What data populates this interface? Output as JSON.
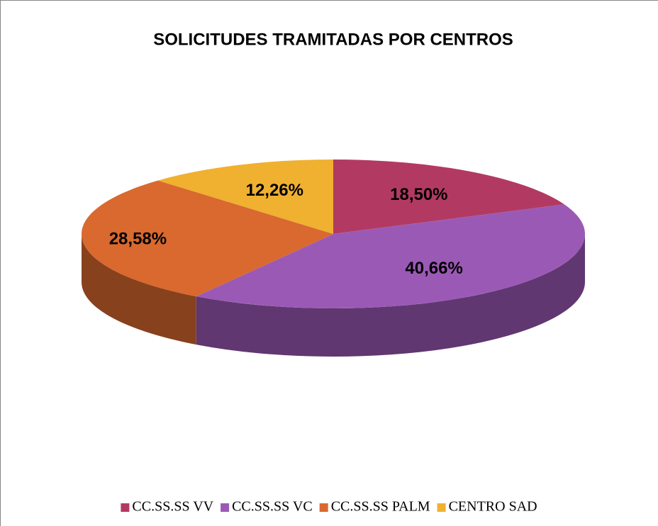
{
  "chart_data": {
    "type": "pie3d",
    "title": "SOLICITUDES TRAMITADAS POR CENTROS",
    "categories": [
      "CC.SS.SS VV",
      "CC.SS.SS VC",
      "CC.SS.SS PALM",
      "CENTRO SAD"
    ],
    "values": [
      18.5,
      40.66,
      28.58,
      12.26
    ],
    "value_labels": [
      "18,50%",
      "40,66%",
      "28,58%",
      "12,26%"
    ],
    "colors": [
      "#b23a62",
      "#9b59b6",
      "#d9692f",
      "#f0b030"
    ],
    "legend": "bottom"
  }
}
